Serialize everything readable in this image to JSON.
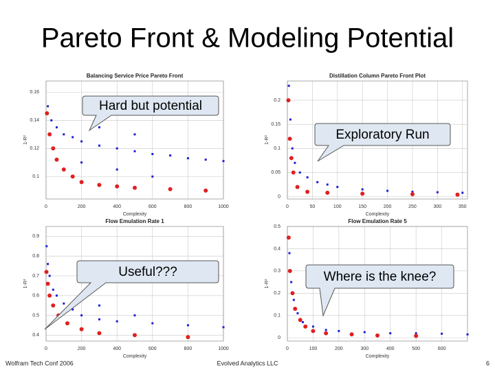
{
  "title": "Pareto Front & Modeling Potential",
  "footer": {
    "left": "Wolfram Tech Conf 2006",
    "center": "Evolved Analytics LLC",
    "right": "6"
  },
  "chart_data": [
    {
      "type": "scatter",
      "title": "Balancing Service Price Pareto Front",
      "x_label": "Complexity",
      "y_label": "1-R²",
      "annotation": "Hard but potential",
      "xlim": [
        0,
        1000
      ],
      "xticks": [
        0,
        200,
        400,
        600,
        800,
        1000
      ],
      "ylim": [
        0.084,
        0.168
      ],
      "yticks": [
        0.1,
        0.12,
        0.14,
        0.16
      ],
      "grid": true,
      "series": [
        {
          "color": "#1f1fd6",
          "x": [
            10,
            30,
            60,
            100,
            150,
            200,
            300,
            400,
            500,
            600,
            700,
            800,
            900,
            1000,
            200,
            400,
            600,
            300,
            500
          ],
          "values": [
            0.15,
            0.14,
            0.135,
            0.13,
            0.128,
            0.125,
            0.122,
            0.12,
            0.118,
            0.116,
            0.115,
            0.113,
            0.112,
            0.111,
            0.11,
            0.105,
            0.1,
            0.135,
            0.13
          ]
        },
        {
          "color": "#e02020",
          "x": [
            5,
            20,
            40,
            60,
            100,
            150,
            200,
            300,
            400,
            500,
            700,
            900
          ],
          "values": [
            0.145,
            0.13,
            0.12,
            0.112,
            0.105,
            0.1,
            0.096,
            0.094,
            0.093,
            0.092,
            0.091,
            0.09
          ]
        }
      ]
    },
    {
      "type": "scatter",
      "title": "Distillation Column Pareto Front Plot",
      "x_label": "Complexity",
      "y_label": "1-R²",
      "annotation": "Exploratory Run",
      "xlim": [
        0,
        360
      ],
      "xticks": [
        0,
        50,
        100,
        150,
        200,
        250,
        300,
        350
      ],
      "ylim": [
        -0.005,
        0.24
      ],
      "yticks": [
        0,
        0.05,
        0.1,
        0.15,
        0.2
      ],
      "grid": true,
      "series": [
        {
          "color": "#1f1fd6",
          "x": [
            3,
            6,
            10,
            15,
            25,
            40,
            60,
            80,
            100,
            150,
            200,
            250,
            300,
            350
          ],
          "values": [
            0.23,
            0.16,
            0.1,
            0.07,
            0.05,
            0.04,
            0.03,
            0.025,
            0.02,
            0.015,
            0.012,
            0.01,
            0.009,
            0.008
          ]
        },
        {
          "color": "#e02020",
          "x": [
            2,
            5,
            8,
            12,
            20,
            40,
            80,
            150,
            250,
            340
          ],
          "values": [
            0.2,
            0.12,
            0.08,
            0.05,
            0.02,
            0.01,
            0.008,
            0.006,
            0.005,
            0.004
          ]
        }
      ]
    },
    {
      "type": "scatter",
      "title": "Flow Emulation Rate 1",
      "x_label": "Complexity",
      "y_label": "1-R²",
      "annotation": "Useful???",
      "xlim": [
        0,
        1000
      ],
      "xticks": [
        0,
        200,
        400,
        600,
        800,
        1000
      ],
      "ylim": [
        0.37,
        0.95
      ],
      "yticks": [
        0.4,
        0.5,
        0.6,
        0.7,
        0.8,
        0.9
      ],
      "grid": true,
      "series": [
        {
          "color": "#1f1fd6",
          "x": [
            3,
            10,
            20,
            40,
            60,
            100,
            150,
            200,
            300,
            400,
            600,
            800,
            1000,
            300,
            500
          ],
          "values": [
            0.85,
            0.76,
            0.7,
            0.63,
            0.6,
            0.56,
            0.53,
            0.5,
            0.48,
            0.47,
            0.46,
            0.45,
            0.44,
            0.55,
            0.5
          ]
        },
        {
          "color": "#e02020",
          "x": [
            2,
            10,
            20,
            40,
            70,
            120,
            200,
            300,
            500,
            800
          ],
          "values": [
            0.72,
            0.66,
            0.6,
            0.55,
            0.5,
            0.46,
            0.43,
            0.41,
            0.4,
            0.39
          ]
        }
      ]
    },
    {
      "type": "scatter",
      "title": "Flow Emulation Rate 5",
      "x_label": "Complexity",
      "y_label": "1-R²",
      "annotation": "Where is the knee?",
      "xlim": [
        0,
        700
      ],
      "xticks": [
        0,
        100,
        200,
        300,
        400,
        500,
        600
      ],
      "ylim": [
        -0.015,
        0.5
      ],
      "yticks": [
        0,
        0.1,
        0.2,
        0.3,
        0.4,
        0.5
      ],
      "grid": true,
      "series": [
        {
          "color": "#1f1fd6",
          "x": [
            8,
            15,
            25,
            40,
            60,
            100,
            150,
            200,
            300,
            400,
            500,
            600,
            700
          ],
          "values": [
            0.38,
            0.25,
            0.17,
            0.11,
            0.07,
            0.05,
            0.035,
            0.03,
            0.025,
            0.02,
            0.02,
            0.018,
            0.015
          ]
        },
        {
          "color": "#e02020",
          "x": [
            5,
            10,
            20,
            30,
            50,
            70,
            100,
            150,
            250,
            350,
            500
          ],
          "values": [
            0.45,
            0.3,
            0.2,
            0.13,
            0.08,
            0.05,
            0.03,
            0.02,
            0.015,
            0.01,
            0.008
          ]
        }
      ]
    }
  ]
}
